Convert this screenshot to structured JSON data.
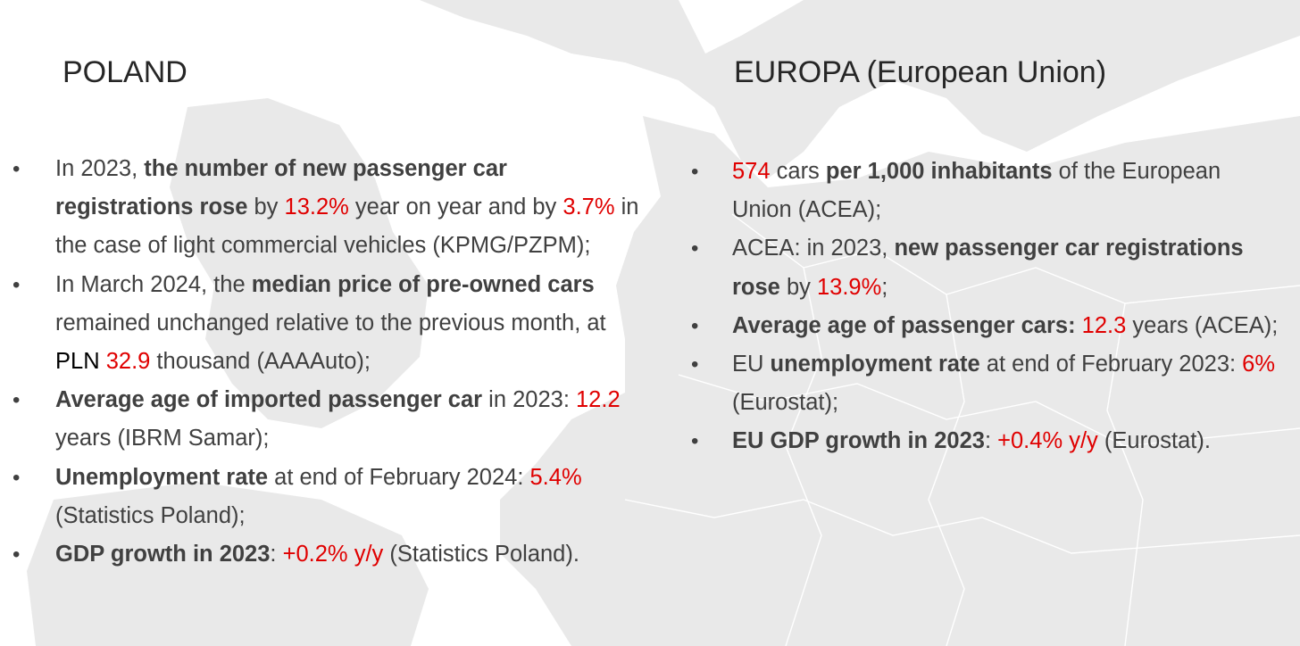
{
  "left": {
    "heading": "POLAND",
    "b1": {
      "t1": "In 2023, ",
      "b1": "the number of new passenger car registrations rose",
      "t2": " by ",
      "r1": "13.2%",
      "t3": " year on year and by ",
      "r2": "3.7%",
      "t4": " in the case of light commercial vehicles (KPMG/PZPM);"
    },
    "b2": {
      "t1": "In March 2024, the ",
      "b1": "median price of pre-owned cars",
      "t2": " remained unchanged relative to the previous month, at ",
      "k1": "PLN",
      "t3": " ",
      "r1": "32.9",
      "t4": " thousand (AAAAuto);"
    },
    "b3": {
      "b1": "Average age of imported passenger car",
      "t1": " in 2023: ",
      "r1": "12.2",
      "t2": " years (IBRM Samar);"
    },
    "b4": {
      "b1": "Unemployment rate",
      "t1": " at end of February 2024: ",
      "r1": "5.4%",
      "t2": " (Statistics Poland);"
    },
    "b5": {
      "b1": "GDP growth in 2023",
      "t1": ": ",
      "r1": "+0.2% y/y",
      "t2": " (Statistics Poland)."
    }
  },
  "right": {
    "heading": "EUROPA (European Union)",
    "b1": {
      "r1": "574",
      "t1": " cars ",
      "b1": "per 1,000 inhabitants",
      "t2": " of the European Union (ACEA);"
    },
    "b2": {
      "t1": "ACEA: in 2023, ",
      "b1": "new passenger car registrations rose",
      "t2": " by ",
      "r1": "13.9%",
      "t3": ";"
    },
    "b3": {
      "b1": "Average age of passenger cars:",
      "t1": " ",
      "r1": "12.3",
      "t2": " years (ACEA);"
    },
    "b4": {
      "t1": "EU ",
      "b1": "unemployment rate",
      "t2": " at end of February 2023: ",
      "r1": "6%",
      "t3": " (Eurostat);"
    },
    "b5": {
      "b1": "EU GDP growth in 2023",
      "t1": ": ",
      "r1": "+0.4% y/y",
      "t2": " (Eurostat)."
    }
  },
  "colors": {
    "accent_red": "#e00000",
    "text": "#404040",
    "heading": "#262626",
    "map": "#e9e9e9"
  },
  "background": {
    "icon": "europe-map-watermark"
  }
}
